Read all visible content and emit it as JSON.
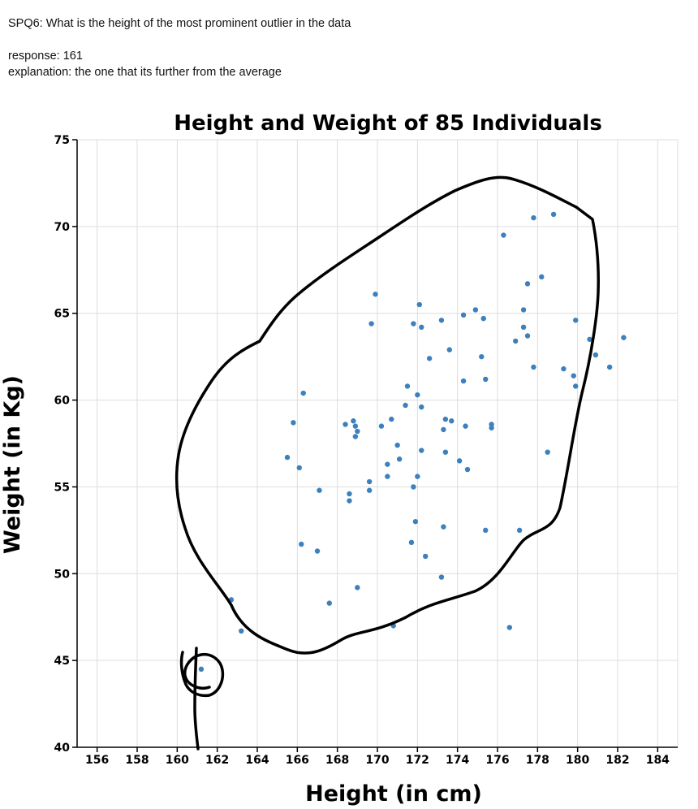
{
  "question": "SPQ6: What is the height of the most prominent outlier in the data",
  "response": "response: 161",
  "explanation": "explanation: the one that its further from the average",
  "chart_data": {
    "type": "scatter",
    "title": "Height and Weight of 85 Individuals",
    "xlabel": "Height (in cm)",
    "ylabel": "Weight (in Kg)",
    "xlim": [
      155,
      185
    ],
    "ylim": [
      40,
      75
    ],
    "xticks": [
      156,
      158,
      160,
      162,
      164,
      166,
      168,
      170,
      172,
      174,
      176,
      178,
      180,
      182,
      184
    ],
    "yticks": [
      40,
      45,
      50,
      55,
      60,
      65,
      70,
      75
    ],
    "grid": true,
    "point_color": "#3c80bd",
    "points": [
      [
        161.2,
        44.5
      ],
      [
        162.7,
        48.5
      ],
      [
        163.2,
        46.7
      ],
      [
        165.5,
        56.7
      ],
      [
        165.8,
        58.7
      ],
      [
        166.1,
        56.1
      ],
      [
        166.2,
        51.7
      ],
      [
        166.3,
        60.4
      ],
      [
        167.0,
        51.3
      ],
      [
        167.1,
        54.8
      ],
      [
        167.6,
        48.3
      ],
      [
        168.4,
        58.6
      ],
      [
        168.6,
        54.6
      ],
      [
        168.6,
        54.2
      ],
      [
        168.8,
        58.8
      ],
      [
        168.9,
        58.5
      ],
      [
        168.9,
        57.9
      ],
      [
        169.0,
        58.2
      ],
      [
        169.0,
        49.2
      ],
      [
        169.6,
        55.3
      ],
      [
        169.6,
        54.8
      ],
      [
        169.7,
        64.4
      ],
      [
        169.9,
        66.1
      ],
      [
        170.2,
        58.5
      ],
      [
        170.5,
        56.3
      ],
      [
        170.5,
        55.6
      ],
      [
        170.7,
        58.9
      ],
      [
        170.8,
        47.0
      ],
      [
        171.0,
        57.4
      ],
      [
        171.1,
        56.6
      ],
      [
        171.4,
        59.7
      ],
      [
        171.5,
        60.8
      ],
      [
        171.7,
        51.8
      ],
      [
        171.8,
        64.4
      ],
      [
        171.8,
        55.0
      ],
      [
        171.9,
        53.0
      ],
      [
        172.0,
        60.3
      ],
      [
        172.0,
        55.6
      ],
      [
        172.1,
        65.5
      ],
      [
        172.2,
        64.2
      ],
      [
        172.2,
        59.6
      ],
      [
        172.2,
        57.1
      ],
      [
        172.4,
        51.0
      ],
      [
        172.6,
        62.4
      ],
      [
        173.2,
        64.6
      ],
      [
        173.2,
        49.8
      ],
      [
        173.3,
        58.3
      ],
      [
        173.3,
        52.7
      ],
      [
        173.4,
        58.9
      ],
      [
        173.4,
        57.0
      ],
      [
        173.6,
        62.9
      ],
      [
        173.7,
        58.8
      ],
      [
        174.1,
        56.5
      ],
      [
        174.3,
        64.9
      ],
      [
        174.3,
        61.1
      ],
      [
        174.4,
        58.5
      ],
      [
        174.5,
        56.0
      ],
      [
        174.9,
        65.2
      ],
      [
        175.2,
        62.5
      ],
      [
        175.3,
        64.7
      ],
      [
        175.4,
        61.2
      ],
      [
        175.4,
        52.5
      ],
      [
        175.7,
        58.6
      ],
      [
        175.7,
        58.4
      ],
      [
        176.3,
        69.5
      ],
      [
        176.6,
        46.9
      ],
      [
        176.9,
        63.4
      ],
      [
        177.1,
        52.5
      ],
      [
        177.3,
        64.2
      ],
      [
        177.3,
        65.2
      ],
      [
        177.5,
        66.7
      ],
      [
        177.5,
        63.7
      ],
      [
        177.8,
        70.5
      ],
      [
        177.8,
        61.9
      ],
      [
        178.2,
        67.1
      ],
      [
        178.5,
        57.0
      ],
      [
        178.8,
        70.7
      ],
      [
        179.3,
        61.8
      ],
      [
        179.8,
        61.4
      ],
      [
        179.9,
        64.6
      ],
      [
        179.9,
        60.8
      ],
      [
        180.6,
        63.5
      ],
      [
        180.9,
        62.6
      ],
      [
        181.6,
        61.9
      ],
      [
        182.3,
        63.6
      ]
    ]
  }
}
